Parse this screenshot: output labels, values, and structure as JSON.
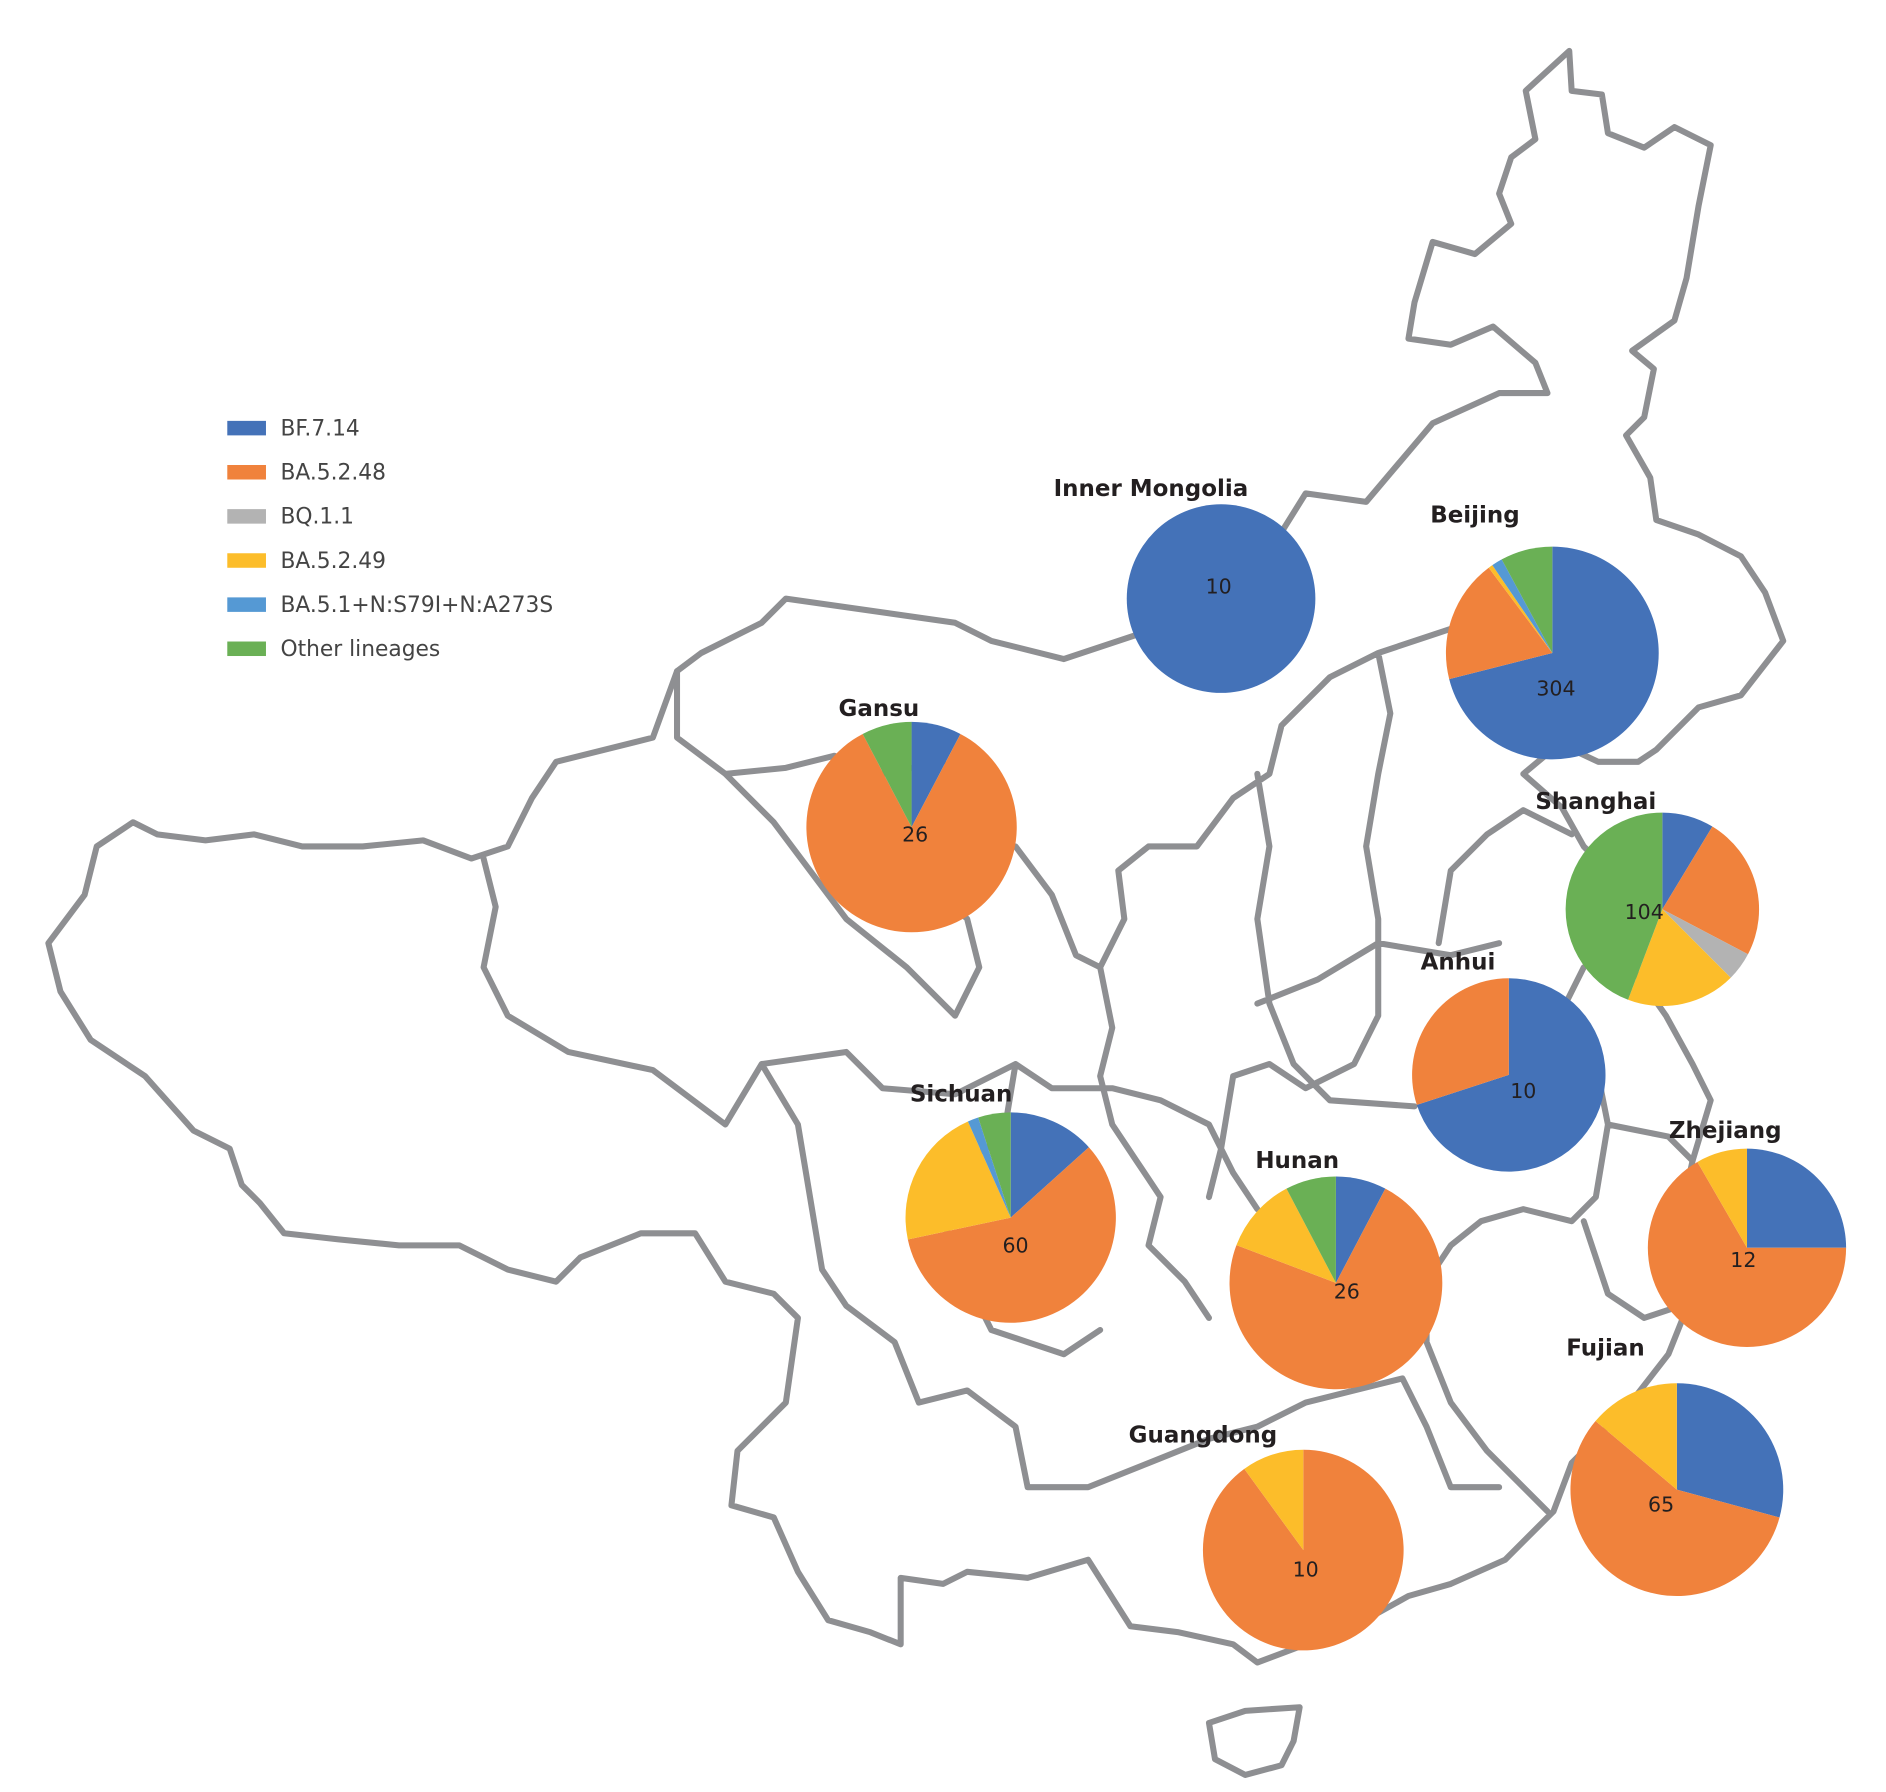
{
  "chart_data": {
    "type": "pie-map",
    "legend_placement": "left",
    "legend": [
      {
        "name": "BF.7.14",
        "color": "#4472b8"
      },
      {
        "name": "BA.5.2.48",
        "color": "#f0823c"
      },
      {
        "name": "BQ.1.1",
        "color": "#b3b3b3"
      },
      {
        "name": "BA.5.2.49",
        "color": "#fcbd2a"
      },
      {
        "name": "BA.5.1+N:S79I+N:A273S",
        "color": "#5599d4"
      },
      {
        "name": "Other lineages",
        "color": "#6ab055"
      }
    ],
    "regions": [
      {
        "name": "Inner Mongolia",
        "total": "10",
        "values": [
          10,
          0,
          0,
          0,
          0,
          0
        ]
      },
      {
        "name": "Beijing",
        "total": "304",
        "values": [
          216,
          57,
          0,
          2,
          5,
          24
        ]
      },
      {
        "name": "Gansu",
        "total": "26",
        "values": [
          2,
          22,
          0,
          0,
          0,
          2
        ]
      },
      {
        "name": "Shanghai",
        "total": "104",
        "values": [
          9,
          25,
          5,
          19,
          0,
          46
        ]
      },
      {
        "name": "Anhui",
        "total": "10",
        "values": [
          7,
          3,
          0,
          0,
          0,
          0
        ]
      },
      {
        "name": "Sichuan",
        "total": "60",
        "values": [
          8,
          35,
          0,
          13,
          1,
          3
        ]
      },
      {
        "name": "Hunan",
        "total": "26",
        "values": [
          2,
          19,
          0,
          3,
          0,
          2
        ]
      },
      {
        "name": "Zhejiang",
        "total": "12",
        "values": [
          3,
          8,
          0,
          1,
          0,
          0
        ]
      },
      {
        "name": "Fujian",
        "total": "65",
        "values": [
          19,
          37,
          0,
          9,
          0,
          0
        ]
      },
      {
        "name": "Guangdong",
        "total": "10",
        "values": [
          0,
          9,
          0,
          1,
          0,
          0
        ]
      }
    ]
  }
}
